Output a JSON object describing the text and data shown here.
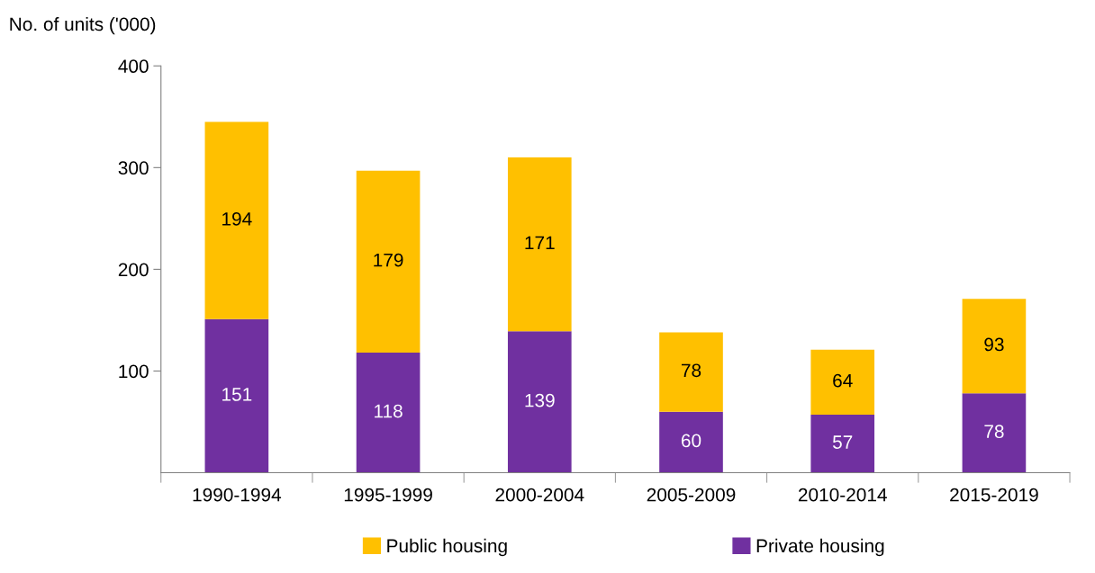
{
  "chart_data": {
    "type": "bar",
    "stacked": true,
    "ylabel": "No. of units ('000)",
    "categories": [
      "1990-1994",
      "1995-1999",
      "2000-2004",
      "2005-2009",
      "2010-2014",
      "2015-2019"
    ],
    "series": [
      {
        "name": "Private housing",
        "color": "#7030a0",
        "values": [
          151,
          118,
          139,
          60,
          57,
          78
        ]
      },
      {
        "name": "Public housing",
        "color": "#ffc000",
        "values": [
          194,
          179,
          171,
          78,
          64,
          93
        ]
      }
    ],
    "ylim": [
      0,
      400
    ],
    "yticks": [
      100,
      200,
      300,
      400
    ],
    "data_labels": true,
    "legend": "bottom",
    "grid": false
  }
}
